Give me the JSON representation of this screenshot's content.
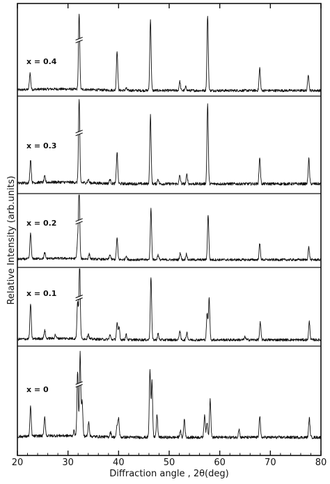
{
  "chart_data": {
    "type": "line",
    "title": "",
    "xlabel": "Diffraction angle , 2θ(deg)",
    "ylabel": "Relative Intensity (arb.units)",
    "xlim": [
      20,
      80
    ],
    "xticks": [
      "20",
      "30",
      "40",
      "50",
      "60",
      "70",
      "80"
    ],
    "y_ticks_shown": false,
    "grid": false,
    "legend": "none",
    "stacked_panels": 5,
    "axis_break_at_x": 32.2,
    "series": [
      {
        "name": "x = 0.4",
        "peaks": [
          {
            "x": 22.5,
            "h": 0.22
          },
          {
            "x": 32.2,
            "h": 1.0
          },
          {
            "x": 39.7,
            "h": 0.53
          },
          {
            "x": 41.5,
            "h": 0.03
          },
          {
            "x": 46.3,
            "h": 0.95
          },
          {
            "x": 52.1,
            "h": 0.12
          },
          {
            "x": 53.3,
            "h": 0.05
          },
          {
            "x": 57.6,
            "h": 1.0
          },
          {
            "x": 67.9,
            "h": 0.3
          },
          {
            "x": 77.5,
            "h": 0.22
          }
        ]
      },
      {
        "name": "x = 0.3",
        "peaks": [
          {
            "x": 22.6,
            "h": 0.28
          },
          {
            "x": 25.4,
            "h": 0.07
          },
          {
            "x": 32.2,
            "h": 1.0
          },
          {
            "x": 34.0,
            "h": 0.04
          },
          {
            "x": 38.3,
            "h": 0.05
          },
          {
            "x": 39.7,
            "h": 0.38
          },
          {
            "x": 46.3,
            "h": 0.82
          },
          {
            "x": 47.8,
            "h": 0.06
          },
          {
            "x": 52.1,
            "h": 0.1
          },
          {
            "x": 53.5,
            "h": 0.11
          },
          {
            "x": 57.6,
            "h": 0.96
          },
          {
            "x": 67.9,
            "h": 0.32
          },
          {
            "x": 77.6,
            "h": 0.3
          }
        ]
      },
      {
        "name": "x = 0.2",
        "peaks": [
          {
            "x": 22.6,
            "h": 0.37
          },
          {
            "x": 25.4,
            "h": 0.08
          },
          {
            "x": 31.9,
            "h": 0.25
          },
          {
            "x": 32.2,
            "h": 1.0
          },
          {
            "x": 34.2,
            "h": 0.07
          },
          {
            "x": 38.3,
            "h": 0.07
          },
          {
            "x": 39.7,
            "h": 0.31
          },
          {
            "x": 41.5,
            "h": 0.06
          },
          {
            "x": 46.4,
            "h": 0.73
          },
          {
            "x": 47.8,
            "h": 0.07
          },
          {
            "x": 52.2,
            "h": 0.1
          },
          {
            "x": 53.4,
            "h": 0.09
          },
          {
            "x": 57.7,
            "h": 0.65
          },
          {
            "x": 67.9,
            "h": 0.23
          },
          {
            "x": 77.6,
            "h": 0.18
          }
        ]
      },
      {
        "name": "x = 0.1",
        "peaks": [
          {
            "x": 22.6,
            "h": 0.47
          },
          {
            "x": 25.4,
            "h": 0.11
          },
          {
            "x": 27.5,
            "h": 0.05
          },
          {
            "x": 31.9,
            "h": 0.5
          },
          {
            "x": 32.3,
            "h": 1.0
          },
          {
            "x": 34.0,
            "h": 0.07
          },
          {
            "x": 38.3,
            "h": 0.06
          },
          {
            "x": 39.7,
            "h": 0.22
          },
          {
            "x": 40.1,
            "h": 0.17
          },
          {
            "x": 41.5,
            "h": 0.07
          },
          {
            "x": 46.4,
            "h": 0.84
          },
          {
            "x": 47.8,
            "h": 0.08
          },
          {
            "x": 52.1,
            "h": 0.12
          },
          {
            "x": 53.5,
            "h": 0.1
          },
          {
            "x": 57.5,
            "h": 0.35
          },
          {
            "x": 57.9,
            "h": 0.55
          },
          {
            "x": 65.0,
            "h": 0.04
          },
          {
            "x": 68.0,
            "h": 0.23
          },
          {
            "x": 77.7,
            "h": 0.24
          }
        ]
      },
      {
        "name": "x = 0",
        "peaks": [
          {
            "x": 22.6,
            "h": 0.35
          },
          {
            "x": 25.4,
            "h": 0.23
          },
          {
            "x": 31.2,
            "h": 0.06
          },
          {
            "x": 31.9,
            "h": 0.78
          },
          {
            "x": 32.4,
            "h": 1.0
          },
          {
            "x": 32.8,
            "h": 0.42
          },
          {
            "x": 34.1,
            "h": 0.18
          },
          {
            "x": 38.4,
            "h": 0.06
          },
          {
            "x": 39.7,
            "h": 0.13
          },
          {
            "x": 40.0,
            "h": 0.22
          },
          {
            "x": 46.2,
            "h": 0.8
          },
          {
            "x": 46.6,
            "h": 0.68
          },
          {
            "x": 47.6,
            "h": 0.27
          },
          {
            "x": 52.2,
            "h": 0.08
          },
          {
            "x": 53.0,
            "h": 0.22
          },
          {
            "x": 57.0,
            "h": 0.27
          },
          {
            "x": 57.5,
            "h": 0.18
          },
          {
            "x": 58.1,
            "h": 0.46
          },
          {
            "x": 63.8,
            "h": 0.1
          },
          {
            "x": 67.9,
            "h": 0.25
          },
          {
            "x": 77.7,
            "h": 0.23
          }
        ]
      }
    ]
  }
}
